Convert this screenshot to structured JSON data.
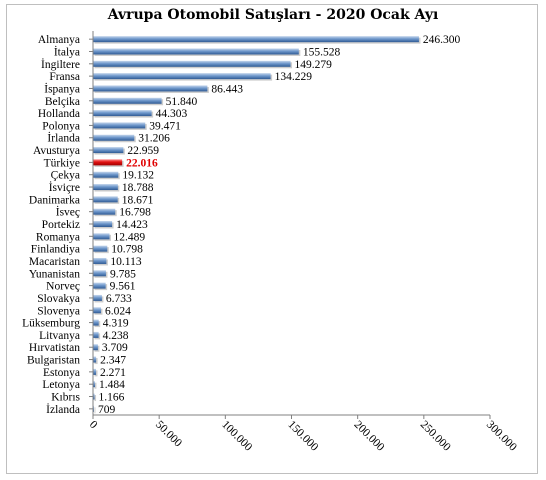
{
  "chart_data": {
    "type": "bar",
    "orientation": "horizontal",
    "title": "Avrupa Otomobil Satışları - 2020 Ocak Ayı",
    "categories": [
      "Almanya",
      "İtalya",
      "İngiltere",
      "Fransa",
      "İspanya",
      "Belçika",
      "Hollanda",
      "Polonya",
      "İrlanda",
      "Avusturya",
      "Türkiye",
      "Çekya",
      "İsviçre",
      "Danimarka",
      "İsveç",
      "Portekiz",
      "Romanya",
      "Finlandiya",
      "Macaristan",
      "Yunanistan",
      "Norveç",
      "Slovakya",
      "Slovenya",
      "Lüksemburg",
      "Litvanya",
      "Hırvatistan",
      "Bulgaristan",
      "Estonya",
      "Letonya",
      "Kıbrıs",
      "İzlanda"
    ],
    "values": [
      246300,
      155528,
      149279,
      134229,
      86443,
      51840,
      44303,
      39471,
      31206,
      22959,
      22016,
      19132,
      18788,
      18671,
      16798,
      14423,
      12489,
      10798,
      10113,
      9785,
      9561,
      6733,
      6024,
      4319,
      4238,
      3709,
      2347,
      2271,
      1484,
      1166,
      709
    ],
    "value_labels": [
      "246.300",
      "155.528",
      "149.279",
      "134.229",
      "86.443",
      "51.840",
      "44.303",
      "39.471",
      "31.206",
      "22.959",
      "22.016",
      "19.132",
      "18.788",
      "18.671",
      "16.798",
      "14.423",
      "12.489",
      "10.798",
      "10.113",
      "9.785",
      "9.561",
      "6.733",
      "6.024",
      "4.319",
      "4.238",
      "3.709",
      "2.347",
      "2.271",
      "1.484",
      "1.166",
      "709"
    ],
    "highlight_category": "Türkiye",
    "xlim": [
      0,
      300000
    ],
    "x_ticks": [
      0,
      50000,
      100000,
      150000,
      200000,
      250000,
      300000
    ],
    "x_tick_labels": [
      "0",
      "50.000",
      "100.000",
      "150.000",
      "200.000",
      "250.000",
      "300.000"
    ],
    "xlabel": "",
    "ylabel": "",
    "grid": false,
    "legend": "none",
    "colors": {
      "bar": "#4f81bd",
      "bar_highlight": "#e00000",
      "label_highlight": "#e00000"
    }
  }
}
